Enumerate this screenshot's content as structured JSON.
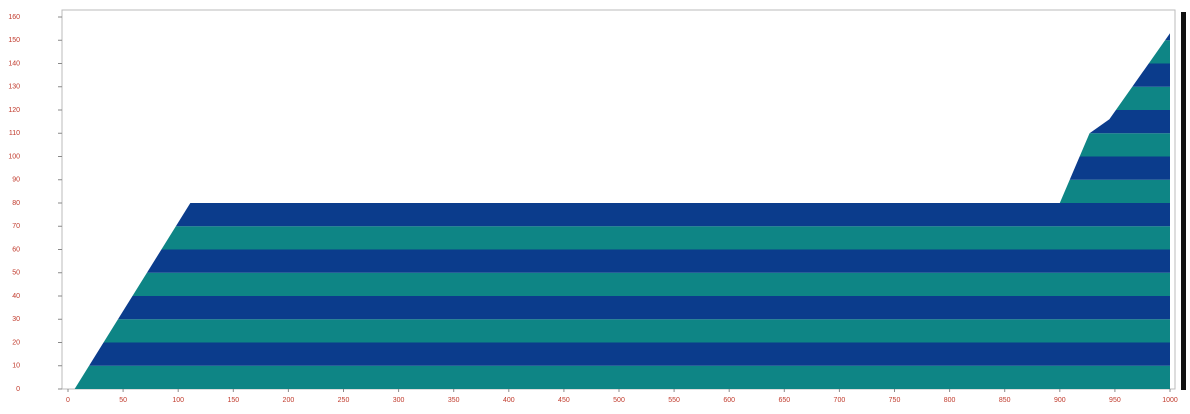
{
  "chart_data": {
    "type": "area",
    "x": [
      6,
      111,
      900,
      927,
      945,
      1000
    ],
    "values": [
      0,
      80,
      80,
      110,
      116,
      153
    ],
    "colors": [
      "#0b3c8c",
      "#0e8585"
    ],
    "xlim": [
      0,
      1000
    ],
    "xticks": [
      0,
      50,
      100,
      150,
      200,
      250,
      300,
      350,
      400,
      450,
      500,
      550,
      600,
      650,
      700,
      750,
      800,
      850,
      900,
      950,
      1000
    ],
    "ylim": [
      0,
      160
    ],
    "yticks": [
      0,
      10,
      20,
      30,
      40,
      50,
      60,
      70,
      80,
      90,
      100,
      110,
      120,
      130,
      140,
      150,
      160
    ]
  }
}
